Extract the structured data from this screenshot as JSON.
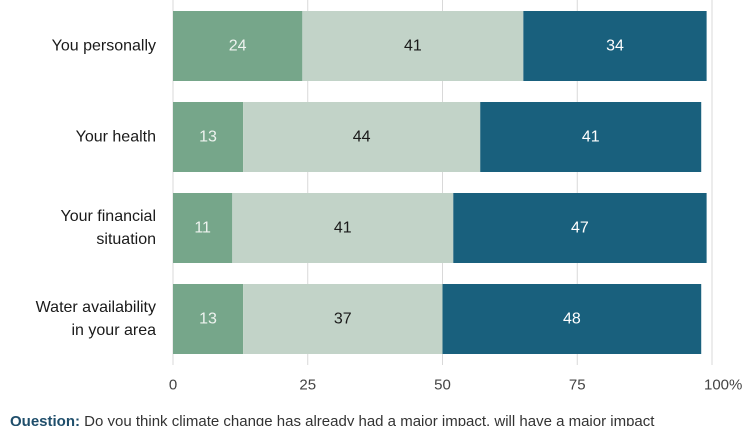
{
  "chart_data": {
    "type": "bar",
    "orientation": "horizontal",
    "stacked": true,
    "categories": [
      [
        "You personally"
      ],
      [
        "Your health"
      ],
      [
        "Your financial",
        "situation"
      ],
      [
        "Water availability",
        "in your area"
      ]
    ],
    "series": [
      {
        "values": [
          24,
          13,
          11,
          13
        ],
        "color": "#76a68a",
        "label_color": "#eef3ef"
      },
      {
        "values": [
          41,
          44,
          41,
          37
        ],
        "color": "#c2d3c8",
        "label_color": "#1a1a1a"
      },
      {
        "values": [
          34,
          41,
          47,
          48
        ],
        "color": "#19607d",
        "label_color": "#ffffff"
      }
    ],
    "x_ticks": [
      "0",
      "25",
      "50",
      "75",
      "100%"
    ],
    "xlim": [
      0,
      100
    ],
    "grid": "vertical"
  },
  "footnote": {
    "bold": "Question:",
    "text": " Do you think climate change has already had a major impact, will have a major impact"
  }
}
